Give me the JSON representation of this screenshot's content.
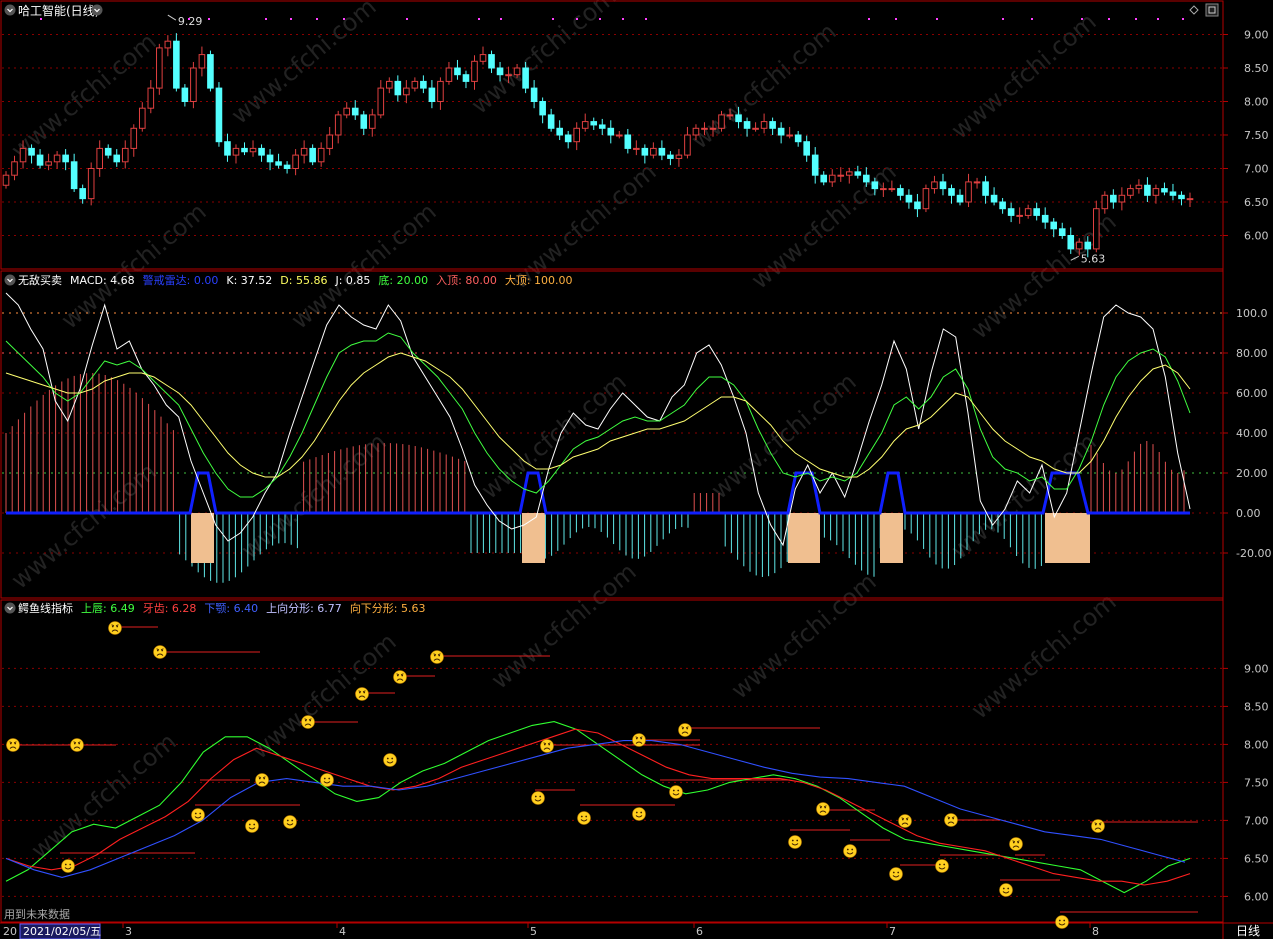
{
  "colors": {
    "bg": "#000000",
    "border": "#b40000",
    "grid": "#8a0000",
    "axis_text": "#c8c8c8",
    "bull": "#e04040",
    "bear": "#54ffff",
    "title": "#ffffff",
    "watermark": "#9a9a9a"
  },
  "watermark": "www.cfchi.com",
  "panel1": {
    "title": "哈工智能(日线)",
    "y_ticks": [
      "9.00",
      "8.50",
      "8.00",
      "7.50",
      "7.00",
      "6.50",
      "6.00"
    ],
    "high_label": "9.29",
    "low_label": "5.63"
  },
  "panel2": {
    "legend": [
      {
        "text": "无敌买卖",
        "color": "#ffffff"
      },
      {
        "text": "MACD: 4.68",
        "color": "#ffffff"
      },
      {
        "text": "警戒雷达: 0.00",
        "color": "#2a40ff"
      },
      {
        "text": "K: 37.52",
        "color": "#ffffff"
      },
      {
        "text": "D: 55.86",
        "color": "#ffff60"
      },
      {
        "text": "J: 0.85",
        "color": "#ffffff"
      },
      {
        "text": "底: 20.00",
        "color": "#40ff40"
      },
      {
        "text": "入顶: 80.00",
        "color": "#ff6060"
      },
      {
        "text": "大顶: 100.00",
        "color": "#ffb040"
      }
    ],
    "y_ticks": [
      "100.0",
      "80.00",
      "60.00",
      "40.00",
      "20.00",
      "0.00",
      "-20.00"
    ]
  },
  "panel3": {
    "legend": [
      {
        "text": "鳄鱼线指标",
        "color": "#ffffff"
      },
      {
        "text": "上唇: 6.49",
        "color": "#40ff40"
      },
      {
        "text": "牙齿: 6.28",
        "color": "#ff4040"
      },
      {
        "text": "下颚: 6.40",
        "color": "#4060ff"
      },
      {
        "text": "上向分形: 6.77",
        "color": "#c0c0ff"
      },
      {
        "text": "向下分形: 5.63",
        "color": "#ffb040"
      }
    ],
    "y_ticks": [
      "9.00",
      "8.50",
      "8.00",
      "7.50",
      "7.00",
      "6.50",
      "6.00"
    ],
    "footnote": "用到未来数据"
  },
  "xaxis": {
    "left_fragment": "20",
    "cursor_date": "2021/02/05/五",
    "months": [
      "3",
      "4",
      "5",
      "6",
      "7",
      "8"
    ],
    "period_label": "日线"
  },
  "chart_data": [
    {
      "type": "candlestick",
      "title": "哈工智能(日线)",
      "ylim": [
        5.5,
        9.5
      ],
      "high": 9.29,
      "low": 5.63,
      "close": [
        6.9,
        7.1,
        7.3,
        7.2,
        7.05,
        7.1,
        7.2,
        7.1,
        6.7,
        6.55,
        7.0,
        7.3,
        7.2,
        7.1,
        7.3,
        7.6,
        7.9,
        8.2,
        8.8,
        8.9,
        8.2,
        8.0,
        8.5,
        8.7,
        8.2,
        7.4,
        7.2,
        7.3,
        7.25,
        7.3,
        7.2,
        7.1,
        7.05,
        7.0,
        7.2,
        7.3,
        7.1,
        7.3,
        7.5,
        7.8,
        7.9,
        7.8,
        7.6,
        7.8,
        8.2,
        8.3,
        8.1,
        8.2,
        8.3,
        8.2,
        8.0,
        8.3,
        8.5,
        8.4,
        8.3,
        8.6,
        8.7,
        8.5,
        8.4,
        8.4,
        8.5,
        8.2,
        8.0,
        7.8,
        7.6,
        7.5,
        7.4,
        7.6,
        7.7,
        7.65,
        7.6,
        7.5,
        7.5,
        7.3,
        7.3,
        7.2,
        7.3,
        7.2,
        7.15,
        7.2,
        7.5,
        7.6,
        7.6,
        7.6,
        7.8,
        7.8,
        7.7,
        7.6,
        7.6,
        7.7,
        7.6,
        7.5,
        7.5,
        7.4,
        7.2,
        6.9,
        6.8,
        6.9,
        6.9,
        6.95,
        6.9,
        6.8,
        6.7,
        6.7,
        6.7,
        6.6,
        6.5,
        6.4,
        6.7,
        6.8,
        6.7,
        6.6,
        6.5,
        6.8,
        6.8,
        6.6,
        6.5,
        6.4,
        6.3,
        6.3,
        6.4,
        6.3,
        6.2,
        6.1,
        6.0,
        5.8,
        5.9,
        5.8,
        6.4,
        6.6,
        6.5,
        6.6,
        6.7,
        6.75,
        6.6,
        6.7,
        6.65,
        6.6,
        6.55,
        6.55
      ]
    },
    {
      "type": "line",
      "title": "无敌买卖",
      "ylim": [
        -35,
        115
      ],
      "reference_lines": [
        20,
        80,
        100
      ],
      "series": [
        {
          "name": "K",
          "values": [
            110,
            104,
            92,
            82,
            56,
            46,
            62,
            84,
            104,
            82,
            86,
            72,
            64,
            54,
            48,
            26,
            10,
            -6,
            -14,
            -10,
            -2,
            10,
            20,
            40,
            58,
            76,
            94,
            104,
            98,
            94,
            92,
            104,
            96,
            78,
            68,
            58,
            48,
            32,
            14,
            4,
            -4,
            -8,
            -6,
            -2,
            22,
            40,
            50,
            44,
            42,
            52,
            60,
            54,
            48,
            46,
            58,
            64,
            80,
            84,
            74,
            58,
            40,
            10,
            -6,
            -16,
            12,
            24,
            10,
            20,
            8,
            26,
            46,
            64,
            86,
            72,
            42,
            70,
            92,
            88,
            50,
            6,
            -6,
            2,
            16,
            10,
            24,
            -2,
            10,
            40,
            70,
            98,
            104,
            100,
            98,
            92,
            68,
            30,
            2
          ]
        },
        {
          "name": "D",
          "values": [
            86,
            80,
            74,
            68,
            60,
            56,
            60,
            68,
            76,
            74,
            76,
            72,
            66,
            60,
            54,
            42,
            30,
            20,
            12,
            8,
            8,
            12,
            18,
            28,
            40,
            54,
            68,
            80,
            84,
            86,
            86,
            90,
            88,
            80,
            74,
            68,
            60,
            52,
            40,
            30,
            22,
            16,
            12,
            10,
            16,
            24,
            32,
            36,
            38,
            42,
            46,
            48,
            46,
            46,
            50,
            54,
            62,
            68,
            68,
            64,
            56,
            42,
            30,
            20,
            18,
            20,
            16,
            18,
            16,
            20,
            30,
            40,
            54,
            58,
            52,
            58,
            68,
            72,
            62,
            42,
            28,
            22,
            20,
            16,
            18,
            12,
            12,
            22,
            36,
            54,
            68,
            76,
            80,
            82,
            78,
            66,
            50
          ]
        },
        {
          "name": "J",
          "values": [
            70,
            68,
            66,
            64,
            62,
            60,
            60,
            62,
            66,
            68,
            70,
            70,
            68,
            64,
            60,
            54,
            46,
            38,
            30,
            24,
            20,
            18,
            18,
            22,
            28,
            36,
            46,
            56,
            64,
            70,
            74,
            78,
            80,
            78,
            76,
            72,
            68,
            62,
            54,
            46,
            38,
            32,
            26,
            22,
            22,
            24,
            28,
            30,
            32,
            36,
            38,
            40,
            42,
            42,
            44,
            46,
            50,
            54,
            58,
            58,
            56,
            50,
            44,
            36,
            30,
            26,
            22,
            20,
            18,
            18,
            22,
            28,
            36,
            42,
            44,
            48,
            54,
            60,
            58,
            50,
            42,
            36,
            32,
            28,
            26,
            22,
            20,
            20,
            26,
            36,
            48,
            58,
            66,
            72,
            74,
            70,
            62
          ]
        }
      ]
    },
    {
      "type": "line",
      "title": "鳄鱼线指标",
      "ylim": [
        5.65,
        9.9
      ],
      "series": [
        {
          "name": "上唇",
          "values": [
            6.2,
            6.35,
            6.6,
            6.85,
            6.95,
            6.9,
            7.05,
            7.2,
            7.5,
            7.9,
            8.1,
            8.1,
            7.95,
            7.75,
            7.55,
            7.35,
            7.25,
            7.3,
            7.5,
            7.65,
            7.75,
            7.9,
            8.05,
            8.15,
            8.25,
            8.3,
            8.2,
            8.0,
            7.8,
            7.6,
            7.45,
            7.35,
            7.4,
            7.5,
            7.55,
            7.6,
            7.55,
            7.45,
            7.3,
            7.1,
            6.9,
            6.75,
            6.7,
            6.65,
            6.6,
            6.55,
            6.5,
            6.45,
            6.4,
            6.35,
            6.2,
            6.05,
            6.2,
            6.4,
            6.5
          ]
        },
        {
          "name": "牙齿",
          "values": [
            6.5,
            6.4,
            6.35,
            6.4,
            6.55,
            6.75,
            6.9,
            7.05,
            7.25,
            7.55,
            7.8,
            7.95,
            7.85,
            7.75,
            7.65,
            7.55,
            7.45,
            7.4,
            7.45,
            7.55,
            7.7,
            7.8,
            7.9,
            8.0,
            8.1,
            8.2,
            8.15,
            8.0,
            7.85,
            7.7,
            7.6,
            7.55,
            7.55,
            7.55,
            7.55,
            7.5,
            7.4,
            7.25,
            7.1,
            6.95,
            6.8,
            6.7,
            6.65,
            6.6,
            6.5,
            6.4,
            6.3,
            6.25,
            6.2,
            6.2,
            6.15,
            6.2,
            6.3
          ]
        },
        {
          "name": "下颚",
          "values": [
            6.5,
            6.35,
            6.25,
            6.35,
            6.5,
            6.65,
            6.8,
            7.0,
            7.3,
            7.5,
            7.55,
            7.5,
            7.45,
            7.45,
            7.4,
            7.45,
            7.55,
            7.65,
            7.75,
            7.85,
            7.95,
            8.0,
            8.05,
            8.05,
            8.0,
            7.9,
            7.8,
            7.7,
            7.62,
            7.57,
            7.55,
            7.5,
            7.45,
            7.3,
            7.15,
            7.05,
            6.95,
            6.85,
            6.8,
            6.75,
            6.65,
            6.55,
            6.45
          ]
        }
      ]
    }
  ]
}
